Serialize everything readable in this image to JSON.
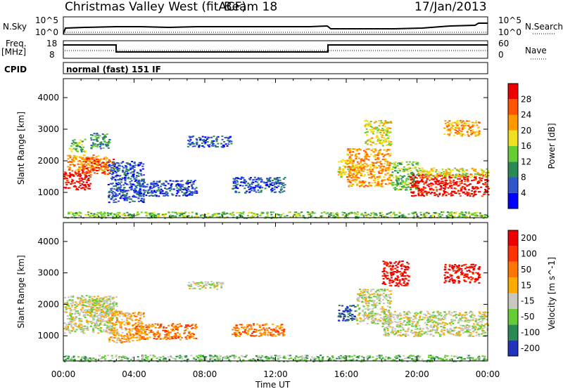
{
  "header": {
    "title": "Christmas Valley West (fitACF)",
    "beam": "Beam 18",
    "date": "17/Jan/2013"
  },
  "panels": {
    "nsky": {
      "left_label": "N.Sky",
      "left_ticks": [
        "10^5",
        "10^0"
      ],
      "right_label": "N.Search",
      "right_ticks": [
        "10^5",
        "10^0"
      ]
    },
    "freq": {
      "left_label_1": "Freq.",
      "left_label_2": "[MHz]",
      "left_ticks": [
        "18",
        "8"
      ],
      "right_label": "Nave",
      "right_ticks": [
        "60",
        "0"
      ]
    },
    "cpid": {
      "label": "CPID",
      "value": "normal (fast) 151 IF"
    }
  },
  "chart_data": [
    {
      "type": "heatmap",
      "ylabel": "Slant Range [km]",
      "yticks": [
        1000,
        2000,
        3000,
        4000
      ],
      "ylim": [
        200,
        4600
      ],
      "xlim": [
        0,
        24
      ],
      "colorbar": {
        "label": "Power [dB]",
        "ticks": [
          "4",
          "8",
          "12",
          "16",
          "20",
          "24",
          "28"
        ],
        "colors": [
          "#0000ff",
          "#3355cc",
          "#2a8a55",
          "#66cc33",
          "#f0e020",
          "#ff9900",
          "#ff5500",
          "#ee0000"
        ]
      },
      "regions": [
        {
          "x": [
            0.0,
            1.5
          ],
          "y": [
            1100,
            1700
          ],
          "level": 7
        },
        {
          "x": [
            0.2,
            2.5
          ],
          "y": [
            1700,
            2200
          ],
          "level": 5
        },
        {
          "x": [
            1.0,
            2.8
          ],
          "y": [
            1600,
            2100
          ],
          "level": 6
        },
        {
          "x": [
            0.3,
            1.2
          ],
          "y": [
            2300,
            2700
          ],
          "level": 3
        },
        {
          "x": [
            1.5,
            2.6
          ],
          "y": [
            2400,
            2900
          ],
          "level": 2
        },
        {
          "x": [
            2.5,
            4.5
          ],
          "y": [
            700,
            2000
          ],
          "level": 1
        },
        {
          "x": [
            4.0,
            7.5
          ],
          "y": [
            900,
            1400
          ],
          "level": 1
        },
        {
          "x": [
            7.0,
            9.5
          ],
          "y": [
            2450,
            2800
          ],
          "level": 1
        },
        {
          "x": [
            9.5,
            12.5
          ],
          "y": [
            1000,
            1500
          ],
          "level": 1
        },
        {
          "x": [
            15.5,
            16.5
          ],
          "y": [
            1500,
            2100
          ],
          "level": 4
        },
        {
          "x": [
            16.0,
            18.5
          ],
          "y": [
            1200,
            2400
          ],
          "level": 5
        },
        {
          "x": [
            17.0,
            18.5
          ],
          "y": [
            2500,
            3300
          ],
          "level": 4
        },
        {
          "x": [
            18.5,
            20.0
          ],
          "y": [
            1100,
            2000
          ],
          "level": 3
        },
        {
          "x": [
            19.5,
            24.0
          ],
          "y": [
            900,
            1600
          ],
          "level": 7
        },
        {
          "x": [
            20.0,
            24.0
          ],
          "y": [
            1500,
            1800
          ],
          "level": 4
        },
        {
          "x": [
            21.5,
            23.5
          ],
          "y": [
            2800,
            3300
          ],
          "level": 5
        },
        {
          "x": [
            0.0,
            24.0
          ],
          "y": [
            200,
            400
          ],
          "level": 3
        }
      ]
    },
    {
      "type": "heatmap",
      "ylabel": "Slant Range [km]",
      "yticks": [
        1000,
        2000,
        3000,
        4000
      ],
      "xticks": [
        "00:00",
        "04:00",
        "08:00",
        "12:00",
        "16:00",
        "20:00",
        "00:00"
      ],
      "xlabel": "Time UT",
      "ylim": [
        200,
        4600
      ],
      "xlim": [
        0,
        24
      ],
      "colorbar": {
        "label": "Velocity [m s^-1]",
        "ticks": [
          "200",
          "100",
          "50",
          "15",
          "-15",
          "-50",
          "-100",
          "-200"
        ],
        "colors": [
          "#2233bb",
          "#2a8a55",
          "#66cc33",
          "#c8c8c0",
          "#ffaa00",
          "#ff7700",
          "#ff3300",
          "#ee0000"
        ]
      },
      "regions": [
        {
          "x": [
            0.0,
            3.0
          ],
          "y": [
            1100,
            2300
          ],
          "level": 3
        },
        {
          "x": [
            1.0,
            2.8
          ],
          "y": [
            1600,
            2200
          ],
          "level": 3
        },
        {
          "x": [
            2.5,
            4.5
          ],
          "y": [
            800,
            1800
          ],
          "level": 4
        },
        {
          "x": [
            4.0,
            7.5
          ],
          "y": [
            900,
            1400
          ],
          "level": 5
        },
        {
          "x": [
            7.0,
            9.0
          ],
          "y": [
            2500,
            2750
          ],
          "level": 3
        },
        {
          "x": [
            9.5,
            12.5
          ],
          "y": [
            1000,
            1400
          ],
          "level": 5
        },
        {
          "x": [
            15.5,
            16.5
          ],
          "y": [
            1500,
            2000
          ],
          "level": 0
        },
        {
          "x": [
            16.5,
            18.5
          ],
          "y": [
            1400,
            2500
          ],
          "level": 3
        },
        {
          "x": [
            18.0,
            24.0
          ],
          "y": [
            1000,
            1800
          ],
          "level": 3
        },
        {
          "x": [
            18.0,
            19.5
          ],
          "y": [
            2600,
            3400
          ],
          "level": 7
        },
        {
          "x": [
            21.5,
            23.5
          ],
          "y": [
            2700,
            3300
          ],
          "level": 7
        },
        {
          "x": [
            0.0,
            24.0
          ],
          "y": [
            200,
            400
          ],
          "level": 2
        }
      ]
    }
  ]
}
